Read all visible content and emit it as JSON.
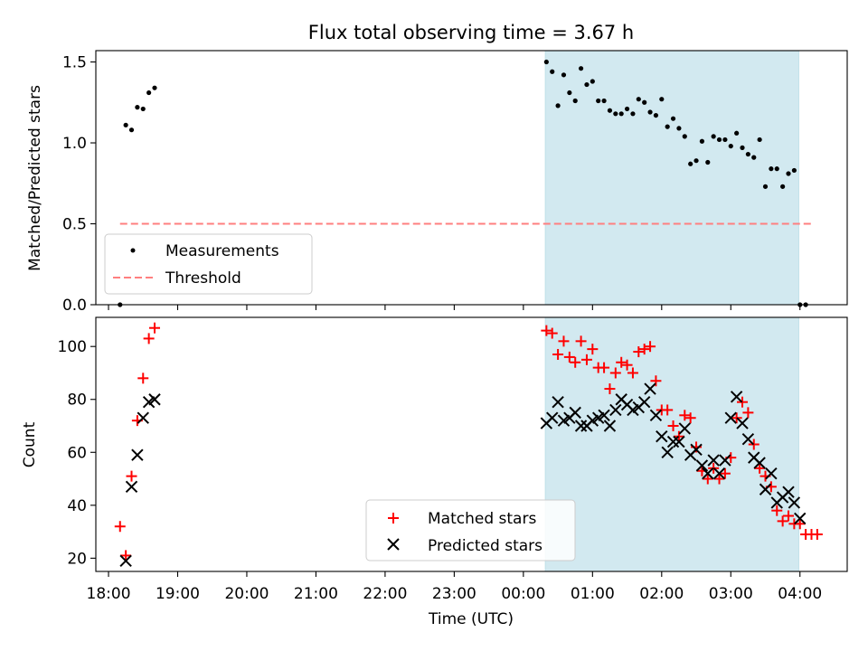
{
  "chart_data": [
    {
      "type": "scatter",
      "title": "Flux total observing time = 3.67 h",
      "ylabel": "Matched/Predicted stars",
      "xlim": [
        "17:49",
        "04:41"
      ],
      "ylim": [
        0,
        1.57
      ],
      "yticks": [
        "0.0",
        "0.5",
        "1.0",
        "1.5"
      ],
      "shaded_region": [
        "00:19",
        "03:59"
      ],
      "threshold": {
        "name": "Threshold",
        "value": 0.5,
        "from": "18:10",
        "to": "04:10",
        "color": "#ff7f7f"
      },
      "legend_position": "lower-left",
      "series": [
        {
          "name": "Measurements",
          "color": "#000000",
          "points": [
            [
              "18:10",
              0.0
            ],
            [
              "18:15",
              1.11
            ],
            [
              "18:20",
              1.08
            ],
            [
              "18:25",
              1.22
            ],
            [
              "18:30",
              1.21
            ],
            [
              "18:35",
              1.31
            ],
            [
              "18:40",
              1.34
            ],
            [
              "00:20",
              1.5
            ],
            [
              "00:25",
              1.44
            ],
            [
              "00:30",
              1.23
            ],
            [
              "00:35",
              1.42
            ],
            [
              "00:40",
              1.31
            ],
            [
              "00:45",
              1.26
            ],
            [
              "00:50",
              1.46
            ],
            [
              "00:55",
              1.36
            ],
            [
              "01:00",
              1.38
            ],
            [
              "01:05",
              1.26
            ],
            [
              "01:10",
              1.26
            ],
            [
              "01:15",
              1.2
            ],
            [
              "01:20",
              1.18
            ],
            [
              "01:25",
              1.18
            ],
            [
              "01:30",
              1.21
            ],
            [
              "01:35",
              1.18
            ],
            [
              "01:40",
              1.27
            ],
            [
              "01:45",
              1.25
            ],
            [
              "01:50",
              1.19
            ],
            [
              "01:55",
              1.17
            ],
            [
              "02:00",
              1.27
            ],
            [
              "02:05",
              1.1
            ],
            [
              "02:10",
              1.15
            ],
            [
              "02:15",
              1.09
            ],
            [
              "02:20",
              1.04
            ],
            [
              "02:25",
              0.87
            ],
            [
              "02:30",
              0.89
            ],
            [
              "02:35",
              1.01
            ],
            [
              "02:40",
              0.88
            ],
            [
              "02:45",
              1.04
            ],
            [
              "02:50",
              1.02
            ],
            [
              "02:55",
              1.02
            ],
            [
              "03:00",
              0.98
            ],
            [
              "03:05",
              1.06
            ],
            [
              "03:10",
              0.97
            ],
            [
              "03:15",
              0.93
            ],
            [
              "03:20",
              0.91
            ],
            [
              "03:25",
              1.02
            ],
            [
              "03:30",
              0.73
            ],
            [
              "03:35",
              0.84
            ],
            [
              "03:40",
              0.84
            ],
            [
              "03:45",
              0.73
            ],
            [
              "03:50",
              0.81
            ],
            [
              "03:55",
              0.83
            ],
            [
              "04:00",
              0.0
            ],
            [
              "04:05",
              0.0
            ]
          ]
        }
      ]
    },
    {
      "type": "scatter",
      "xlabel": "Time (UTC)",
      "ylabel": "Count",
      "xlim": [
        "17:49",
        "04:41"
      ],
      "ylim": [
        15,
        111
      ],
      "yticks": [
        "20",
        "40",
        "60",
        "80",
        "100"
      ],
      "xticks": [
        "18:00",
        "19:00",
        "20:00",
        "21:00",
        "22:00",
        "23:00",
        "00:00",
        "01:00",
        "02:00",
        "03:00",
        "04:00"
      ],
      "shaded_region": [
        "00:19",
        "03:59"
      ],
      "legend_position": "lower-center",
      "series": [
        {
          "name": "Matched stars",
          "marker": "plus",
          "color": "#ff0000",
          "points": [
            [
              "18:10",
              32
            ],
            [
              "18:15",
              21
            ],
            [
              "18:20",
              51
            ],
            [
              "18:25",
              72
            ],
            [
              "18:30",
              88
            ],
            [
              "18:35",
              103
            ],
            [
              "18:40",
              107
            ],
            [
              "00:20",
              106
            ],
            [
              "00:25",
              105
            ],
            [
              "00:30",
              97
            ],
            [
              "00:35",
              102
            ],
            [
              "00:40",
              96
            ],
            [
              "00:45",
              94
            ],
            [
              "00:50",
              102
            ],
            [
              "00:55",
              95
            ],
            [
              "01:00",
              99
            ],
            [
              "01:05",
              92
            ],
            [
              "01:10",
              92
            ],
            [
              "01:15",
              84
            ],
            [
              "01:20",
              90
            ],
            [
              "01:25",
              94
            ],
            [
              "01:30",
              93
            ],
            [
              "01:35",
              90
            ],
            [
              "01:40",
              98
            ],
            [
              "01:45",
              99
            ],
            [
              "01:50",
              100
            ],
            [
              "01:55",
              87
            ],
            [
              "02:00",
              76
            ],
            [
              "02:05",
              76
            ],
            [
              "02:10",
              70
            ],
            [
              "02:15",
              66
            ],
            [
              "02:20",
              74
            ],
            [
              "02:25",
              73
            ],
            [
              "02:30",
              62
            ],
            [
              "02:35",
              53
            ],
            [
              "02:40",
              50
            ],
            [
              "02:45",
              54
            ],
            [
              "02:50",
              50
            ],
            [
              "02:55",
              52
            ],
            [
              "03:00",
              58
            ],
            [
              "03:05",
              73
            ],
            [
              "03:10",
              79
            ],
            [
              "03:15",
              75
            ],
            [
              "03:20",
              63
            ],
            [
              "03:25",
              54
            ],
            [
              "03:30",
              51
            ],
            [
              "03:35",
              47
            ],
            [
              "03:40",
              38
            ],
            [
              "03:45",
              34
            ],
            [
              "03:50",
              36
            ],
            [
              "03:55",
              33
            ],
            [
              "04:00",
              33
            ],
            [
              "04:05",
              29
            ],
            [
              "04:10",
              29
            ],
            [
              "04:15",
              29
            ]
          ]
        },
        {
          "name": "Predicted stars",
          "marker": "cross",
          "color": "#000000",
          "points": [
            [
              "18:15",
              19
            ],
            [
              "18:20",
              47
            ],
            [
              "18:25",
              59
            ],
            [
              "18:30",
              73
            ],
            [
              "18:35",
              79
            ],
            [
              "18:40",
              80
            ],
            [
              "00:20",
              71
            ],
            [
              "00:25",
              73
            ],
            [
              "00:30",
              79
            ],
            [
              "00:35",
              72
            ],
            [
              "00:40",
              73
            ],
            [
              "00:45",
              75
            ],
            [
              "00:50",
              70
            ],
            [
              "00:55",
              70
            ],
            [
              "01:00",
              72
            ],
            [
              "01:05",
              73
            ],
            [
              "01:10",
              74
            ],
            [
              "01:15",
              70
            ],
            [
              "01:20",
              76
            ],
            [
              "01:25",
              80
            ],
            [
              "01:30",
              78
            ],
            [
              "01:35",
              76
            ],
            [
              "01:40",
              77
            ],
            [
              "01:45",
              79
            ],
            [
              "01:50",
              84
            ],
            [
              "01:55",
              74
            ],
            [
              "02:00",
              66
            ],
            [
              "02:05",
              60
            ],
            [
              "02:10",
              64
            ],
            [
              "02:15",
              64
            ],
            [
              "02:20",
              69
            ],
            [
              "02:25",
              59
            ],
            [
              "02:30",
              61
            ],
            [
              "02:35",
              55
            ],
            [
              "02:40",
              52
            ],
            [
              "02:45",
              57
            ],
            [
              "02:50",
              52
            ],
            [
              "02:55",
              57
            ],
            [
              "03:00",
              73
            ],
            [
              "03:05",
              81
            ],
            [
              "03:10",
              71
            ],
            [
              "03:15",
              65
            ],
            [
              "03:20",
              58
            ],
            [
              "03:25",
              56
            ],
            [
              "03:30",
              46
            ],
            [
              "03:35",
              52
            ],
            [
              "03:40",
              41
            ],
            [
              "03:45",
              43
            ],
            [
              "03:50",
              45
            ],
            [
              "03:55",
              41
            ],
            [
              "04:00",
              35
            ]
          ]
        }
      ]
    }
  ],
  "colors": {
    "shade": "#d2e9f0",
    "matched": "#ff0000",
    "predicted": "#000000",
    "threshold": "#ff7f7f",
    "axes": "#000000"
  }
}
